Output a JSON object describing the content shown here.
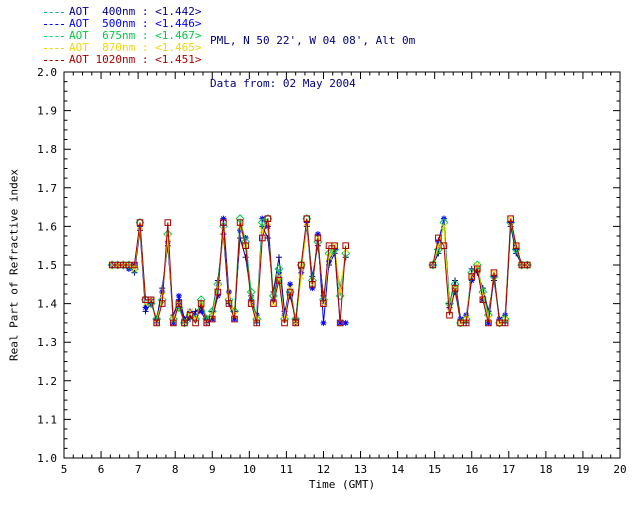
{
  "header": {
    "line1": "PML, N 50 22', W 04 08', Alt 0m",
    "line2": "Data from: 02 May 2004"
  },
  "legend": {
    "entries": [
      {
        "label": "AOT  400nm : <1.442>",
        "text_color": "#000090",
        "line_color": "#00b2b2"
      },
      {
        "label": "AOT  500nm : <1.446>",
        "text_color": "#0000ff",
        "line_color": "#0000ff"
      },
      {
        "label": "AOT  675nm : <1.467>",
        "text_color": "#00cc44",
        "line_color": "#00dd66"
      },
      {
        "label": "AOT  870nm : <1.465>",
        "text_color": "#f0d800",
        "line_color": "#f0d800"
      },
      {
        "label": "AOT 1020nm : <1.451>",
        "text_color": "#aa0000",
        "line_color": "#aa0000"
      }
    ]
  },
  "chart_data": {
    "type": "line",
    "title": "",
    "xlabel": "Time (GMT)",
    "ylabel": "Real Part of Refractive index",
    "xlim": [
      5,
      20
    ],
    "ylim": [
      1.0,
      2.0
    ],
    "grid": false,
    "legend_position": "top-left",
    "xticks": [
      5,
      6,
      7,
      8,
      9,
      10,
      11,
      12,
      13,
      14,
      15,
      16,
      17,
      18,
      19,
      20
    ],
    "yticks": [
      1.0,
      1.1,
      1.2,
      1.3,
      1.4,
      1.5,
      1.6,
      1.7,
      1.8,
      1.9,
      2.0
    ],
    "x": [
      6.3,
      6.45,
      6.6,
      6.75,
      6.9,
      7.05,
      7.2,
      7.35,
      7.5,
      7.65,
      7.8,
      7.95,
      8.1,
      8.25,
      8.4,
      8.55,
      8.7,
      8.85,
      9.0,
      9.15,
      9.3,
      9.45,
      9.6,
      9.75,
      9.9,
      10.05,
      10.2,
      10.35,
      10.5,
      10.65,
      10.8,
      10.95,
      11.1,
      11.25,
      11.4,
      11.55,
      11.7,
      11.85,
      12.0,
      12.15,
      12.3,
      12.45,
      12.6,
      null,
      14.95,
      15.1,
      15.25,
      15.4,
      15.55,
      15.7,
      15.85,
      16.0,
      16.15,
      16.3,
      16.45,
      16.6,
      16.75,
      16.9,
      17.05,
      17.2,
      17.35,
      17.5
    ],
    "series": [
      {
        "name": "AOT 400nm",
        "key": "aot-400nm",
        "mean": "<1.442>",
        "color": "#000090",
        "marker": "plus",
        "values": [
          1.5,
          1.5,
          1.5,
          1.5,
          1.48,
          1.59,
          1.38,
          1.4,
          1.36,
          1.44,
          1.55,
          1.37,
          1.41,
          1.35,
          1.36,
          1.38,
          1.39,
          1.36,
          1.38,
          1.46,
          1.58,
          1.4,
          1.38,
          1.57,
          1.52,
          1.42,
          1.35,
          1.6,
          1.57,
          1.43,
          1.52,
          1.38,
          1.42,
          1.36,
          1.49,
          1.6,
          1.47,
          1.55,
          1.42,
          1.5,
          1.53,
          1.44,
          1.52,
          null,
          1.5,
          1.53,
          1.62,
          1.4,
          1.46,
          1.36,
          1.35,
          1.49,
          1.48,
          1.44,
          1.38,
          1.46,
          1.36,
          1.35,
          1.6,
          1.53,
          1.5,
          1.5
        ]
      },
      {
        "name": "AOT 500nm",
        "key": "aot-500nm",
        "mean": "<1.446>",
        "color": "#0000ff",
        "marker": "asterisk",
        "values": [
          1.5,
          1.5,
          1.5,
          1.49,
          1.5,
          1.6,
          1.39,
          1.41,
          1.35,
          1.43,
          1.56,
          1.35,
          1.42,
          1.36,
          1.38,
          1.37,
          1.38,
          1.35,
          1.36,
          1.42,
          1.62,
          1.43,
          1.36,
          1.59,
          1.57,
          1.41,
          1.37,
          1.62,
          1.6,
          1.41,
          1.48,
          1.37,
          1.45,
          1.35,
          1.48,
          1.61,
          1.44,
          1.58,
          1.35,
          1.51,
          1.54,
          1.35,
          1.35,
          null,
          1.5,
          1.56,
          1.62,
          1.39,
          1.43,
          1.36,
          1.37,
          1.46,
          1.49,
          1.41,
          1.35,
          1.47,
          1.36,
          1.37,
          1.61,
          1.54,
          1.5,
          1.5
        ]
      },
      {
        "name": "AOT 675nm",
        "key": "aot-675nm",
        "mean": "<1.467>",
        "color": "#00cc44",
        "marker": "diamond",
        "values": [
          1.5,
          1.5,
          1.5,
          1.5,
          1.49,
          1.61,
          1.41,
          1.4,
          1.36,
          1.41,
          1.58,
          1.36,
          1.39,
          1.35,
          1.37,
          1.36,
          1.41,
          1.36,
          1.38,
          1.45,
          1.6,
          1.41,
          1.38,
          1.62,
          1.56,
          1.43,
          1.36,
          1.61,
          1.62,
          1.42,
          1.49,
          1.36,
          1.43,
          1.36,
          1.5,
          1.62,
          1.46,
          1.56,
          1.41,
          1.53,
          1.54,
          1.42,
          1.53,
          null,
          1.5,
          1.54,
          1.61,
          1.4,
          1.45,
          1.35,
          1.36,
          1.48,
          1.5,
          1.43,
          1.37,
          1.47,
          1.35,
          1.36,
          1.61,
          1.54,
          1.5,
          1.5
        ]
      },
      {
        "name": "AOT 870nm",
        "key": "aot-870nm",
        "mean": "<1.465>",
        "color": "#f0d800",
        "marker": "x",
        "values": [
          1.5,
          1.5,
          1.5,
          1.5,
          1.49,
          1.6,
          1.4,
          1.41,
          1.35,
          1.42,
          1.57,
          1.36,
          1.4,
          1.35,
          1.38,
          1.36,
          1.4,
          1.35,
          1.37,
          1.44,
          1.59,
          1.42,
          1.37,
          1.6,
          1.55,
          1.4,
          1.36,
          1.59,
          1.61,
          1.4,
          1.47,
          1.36,
          1.44,
          1.35,
          1.47,
          1.61,
          1.45,
          1.57,
          1.4,
          1.52,
          1.55,
          1.43,
          1.54,
          null,
          1.5,
          1.55,
          1.6,
          1.38,
          1.44,
          1.35,
          1.36,
          1.47,
          1.5,
          1.42,
          1.36,
          1.48,
          1.35,
          1.36,
          1.62,
          1.55,
          1.5,
          1.5
        ]
      },
      {
        "name": "AOT 1020nm",
        "key": "aot-1020nm",
        "mean": "<1.451>",
        "color": "#aa0000",
        "marker": "square",
        "values": [
          1.5,
          1.5,
          1.5,
          1.5,
          1.5,
          1.61,
          1.41,
          1.41,
          1.35,
          1.4,
          1.61,
          1.35,
          1.4,
          1.35,
          1.37,
          1.35,
          1.4,
          1.35,
          1.36,
          1.43,
          1.61,
          1.4,
          1.36,
          1.61,
          1.55,
          1.4,
          1.35,
          1.57,
          1.62,
          1.4,
          1.46,
          1.35,
          1.43,
          1.35,
          1.5,
          1.62,
          1.45,
          1.57,
          1.4,
          1.55,
          1.55,
          1.35,
          1.55,
          null,
          1.5,
          1.57,
          1.55,
          1.37,
          1.44,
          1.35,
          1.35,
          1.47,
          1.49,
          1.41,
          1.35,
          1.48,
          1.35,
          1.35,
          1.62,
          1.55,
          1.5,
          1.5
        ]
      }
    ]
  }
}
